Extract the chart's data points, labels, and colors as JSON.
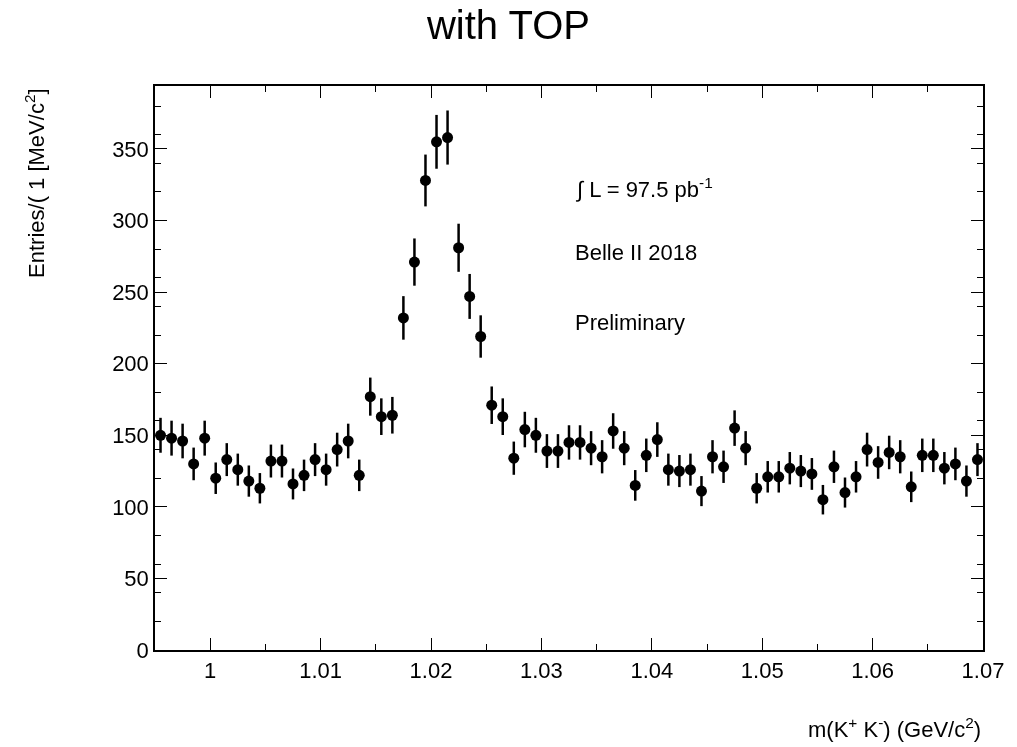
{
  "chart_data": {
    "type": "scatter",
    "title": "with TOP",
    "xlabel": "m(K$^{+}$ K$^{-}$) (GeV/c$^{2}$)",
    "ylabel": "Entries/( 1 [MeV/c$^{2}$]",
    "annotations": [
      "∫ L = 97.5 pb$^{-1}$",
      "Belle II 2018",
      "Preliminary"
    ],
    "x": [
      0.9955,
      0.9965,
      0.9975,
      0.9985,
      0.9995,
      1.0005,
      1.0015,
      1.0025,
      1.0035,
      1.0045,
      1.0055,
      1.0065,
      1.0075,
      1.0085,
      1.0095,
      1.0105,
      1.0115,
      1.0125,
      1.0135,
      1.0145,
      1.0155,
      1.0165,
      1.0175,
      1.0185,
      1.0195,
      1.0205,
      1.0215,
      1.0225,
      1.0235,
      1.0245,
      1.0255,
      1.0265,
      1.0275,
      1.0285,
      1.0295,
      1.0305,
      1.0315,
      1.0325,
      1.0335,
      1.0345,
      1.0355,
      1.0365,
      1.0375,
      1.0385,
      1.0395,
      1.0405,
      1.0415,
      1.0425,
      1.0435,
      1.0445,
      1.0455,
      1.0465,
      1.0475,
      1.0485,
      1.0495,
      1.0505,
      1.0515,
      1.0525,
      1.0535,
      1.0545,
      1.0555,
      1.0565,
      1.0575,
      1.0585,
      1.0595,
      1.0605,
      1.0615,
      1.0625,
      1.0635,
      1.0645,
      1.0655,
      1.0665,
      1.0675,
      1.0685,
      1.0695
    ],
    "values": [
      150,
      148,
      146,
      130,
      148,
      120,
      133,
      126,
      118,
      113,
      132,
      132,
      116,
      122,
      133,
      126,
      140,
      146,
      122,
      177,
      163,
      164,
      232,
      271,
      328,
      355,
      358,
      281,
      247,
      219,
      171,
      163,
      134,
      154,
      150,
      139,
      139,
      145,
      145,
      141,
      135,
      153,
      141,
      115,
      136,
      147,
      126,
      125,
      126,
      111,
      135,
      128,
      155,
      141,
      113,
      121,
      121,
      127,
      125,
      123,
      105,
      128,
      110,
      121,
      140,
      131,
      138,
      135,
      114,
      136,
      136,
      127,
      130,
      118,
      133
    ],
    "errors": [
      12.2,
      12.2,
      12.1,
      11.4,
      12.2,
      11,
      11.5,
      11.2,
      10.9,
      10.6,
      11.5,
      11.5,
      10.8,
      11,
      11.5,
      11.2,
      11.8,
      12.1,
      11,
      13.3,
      12.8,
      12.8,
      15.2,
      16.5,
      18.1,
      18.8,
      18.9,
      16.8,
      15.7,
      14.8,
      13.1,
      12.8,
      11.6,
      12.4,
      12.2,
      11.8,
      11.8,
      12,
      12,
      11.9,
      11.6,
      12.4,
      11.9,
      10.7,
      11.7,
      12.1,
      11.2,
      11.2,
      11.2,
      10.5,
      11.6,
      11.3,
      12.4,
      11.9,
      10.6,
      11,
      11,
      11.3,
      11.2,
      11.1,
      10.3,
      11.3,
      10.5,
      11,
      11.8,
      11.4,
      11.7,
      11.6,
      10.7,
      11.7,
      11.7,
      11.3,
      11.4,
      10.9,
      11.5
    ],
    "color": "#000000",
    "marker": "circle",
    "legend": false,
    "xlim": [
      0.995,
      1.07
    ],
    "xticks": [
      {
        "value": 1,
        "label": "1"
      },
      1.01,
      1.02,
      1.03,
      1.04,
      1.05,
      1.06,
      1.07
    ],
    "ylim": [
      0,
      394
    ],
    "yticks": [
      0,
      50,
      100,
      150,
      200,
      250,
      300,
      350
    ]
  }
}
